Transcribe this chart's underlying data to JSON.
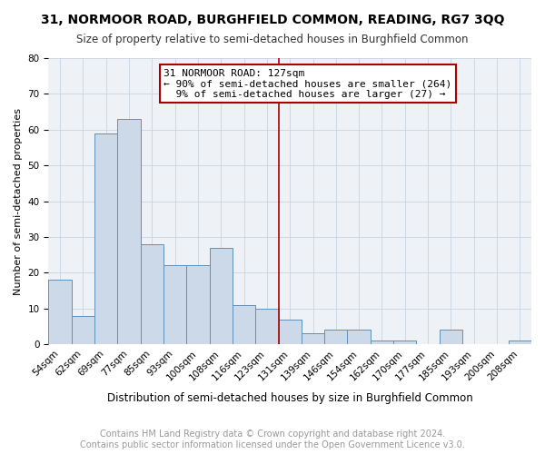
{
  "title": "31, NORMOOR ROAD, BURGHFIELD COMMON, READING, RG7 3QQ",
  "subtitle": "Size of property relative to semi-detached houses in Burghfield Common",
  "xlabel": "Distribution of semi-detached houses by size in Burghfield Common",
  "ylabel": "Number of semi-detached properties",
  "footer_line1": "Contains HM Land Registry data © Crown copyright and database right 2024.",
  "footer_line2": "Contains public sector information licensed under the Open Government Licence v3.0.",
  "categories": [
    "54sqm",
    "62sqm",
    "69sqm",
    "77sqm",
    "85sqm",
    "93sqm",
    "100sqm",
    "108sqm",
    "116sqm",
    "123sqm",
    "131sqm",
    "139sqm",
    "146sqm",
    "154sqm",
    "162sqm",
    "170sqm",
    "177sqm",
    "185sqm",
    "193sqm",
    "200sqm",
    "208sqm"
  ],
  "values": [
    18,
    8,
    59,
    63,
    28,
    22,
    22,
    27,
    11,
    10,
    7,
    3,
    4,
    4,
    1,
    1,
    0,
    4,
    0,
    0,
    1
  ],
  "bar_color": "#ccd9e8",
  "bar_edge_color": "#6090b8",
  "ref_line_idx": 9,
  "annotation_title": "31 NORMOOR ROAD: 127sqm",
  "annotation_line1": "← 90% of semi-detached houses are smaller (264)",
  "annotation_line2": "  9% of semi-detached houses are larger (27) →",
  "annotation_box_color": "#ffffff",
  "annotation_box_edge_color": "#aa0000",
  "ref_line_color": "#aa0000",
  "ylim": [
    0,
    80
  ],
  "yticks": [
    0,
    10,
    20,
    30,
    40,
    50,
    60,
    70,
    80
  ],
  "title_fontsize": 10,
  "subtitle_fontsize": 8.5,
  "xlabel_fontsize": 8.5,
  "ylabel_fontsize": 8,
  "tick_fontsize": 7.5,
  "footer_fontsize": 7,
  "annotation_fontsize": 8
}
